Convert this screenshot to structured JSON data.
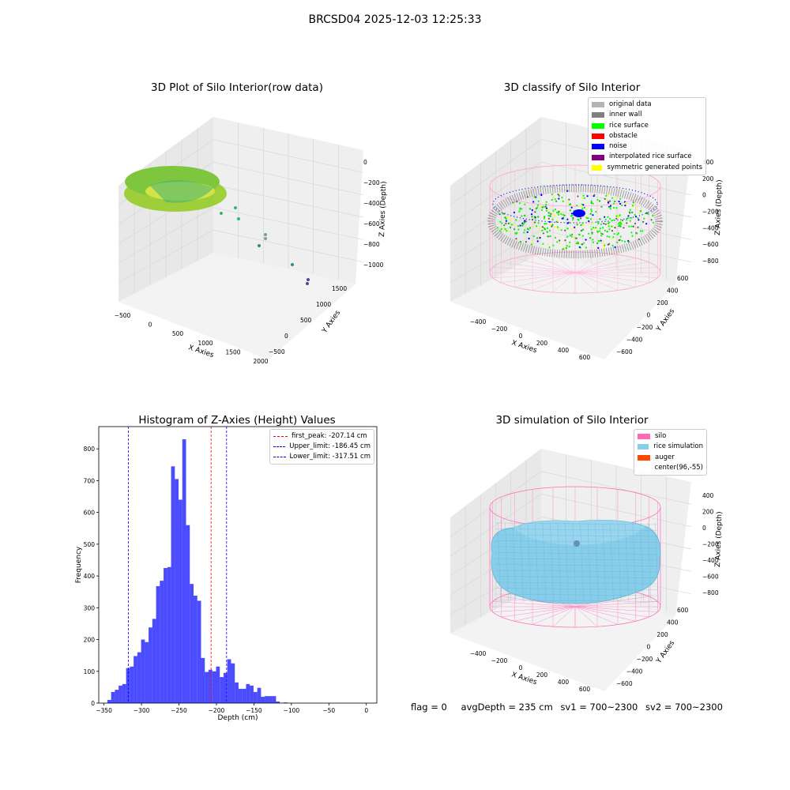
{
  "figure": {
    "suptitle": "BRCSD04 2025-12-03 12:25:33",
    "status": {
      "flag": "flag = 0",
      "avg_depth": "avgDepth = 235 cm",
      "sv1": "sv1 = 700~2300",
      "sv2": "sv2 = 700~2300"
    }
  },
  "panels": {
    "raw": {
      "title": "3D Plot of Silo Interior(row data)",
      "xlabel": "X Axies",
      "ylabel": "Y Axies",
      "zlabel": "Z Axies (Depth)",
      "xticks": [
        "−500",
        "0",
        "500",
        "1000",
        "1500",
        "2000"
      ],
      "yticks": [
        "−500",
        "0",
        "500",
        "1000",
        "1500"
      ],
      "zticks": [
        "0",
        "−200",
        "−400",
        "−600",
        "−800",
        "−1000"
      ]
    },
    "classify": {
      "title": "3D classify of Silo Interior",
      "xlabel": "X Axies",
      "ylabel": "Y Axies",
      "zlabel": "Z Axies (Depth)",
      "xticks": [
        "−400",
        "−200",
        "0",
        "200",
        "400",
        "600"
      ],
      "yticks": [
        "−600",
        "−400",
        "−200",
        "0",
        "200",
        "400",
        "600"
      ],
      "zticks": [
        "400",
        "200",
        "0",
        "−200",
        "−400",
        "−600",
        "−800"
      ],
      "legend": [
        {
          "label": "original data",
          "color": "#b4b4b4"
        },
        {
          "label": "inner wall",
          "color": "#808080"
        },
        {
          "label": "rice surface",
          "color": "#00ff00"
        },
        {
          "label": "obstacle",
          "color": "#ff0000"
        },
        {
          "label": "noise",
          "color": "#0000ff"
        },
        {
          "label": "interpolated rice surface",
          "color": "#800080"
        },
        {
          "label": "symmetric generated points",
          "color": "#ffff00"
        }
      ]
    },
    "simulation": {
      "title": "3D simulation of Silo Interior",
      "xlabel": "X Axies",
      "ylabel": "Y Axies",
      "zlabel": "Z Axies (Depth)",
      "xticks": [
        "−400",
        "−200",
        "0",
        "200",
        "400",
        "600"
      ],
      "yticks": [
        "−600",
        "−400",
        "−200",
        "0",
        "200",
        "400",
        "600"
      ],
      "zticks": [
        "400",
        "200",
        "0",
        "−200",
        "−400",
        "−600",
        "−800"
      ],
      "legend": [
        {
          "label": "silo",
          "color": "#ff69b4"
        },
        {
          "label": "rice simulation",
          "color": "#87ceeb"
        },
        {
          "label": "auger",
          "color": "#ff4500"
        },
        {
          "label": "center(96,-55)",
          "color": ""
        }
      ]
    }
  },
  "chart_data": {
    "type": "bar",
    "title": "Histogram of Z-Axies (Height) Values",
    "xlabel": "Depth (cm)",
    "ylabel": "Frequency",
    "xlim": [
      -357,
      14
    ],
    "ylim": [
      0,
      870
    ],
    "xticks": [
      -350,
      -300,
      -250,
      -200,
      -150,
      -100,
      -50,
      0
    ],
    "yticks": [
      0,
      100,
      200,
      300,
      400,
      500,
      600,
      700,
      800
    ],
    "color": "#0000ff",
    "bin_edges": [
      -345.5,
      -340.5,
      -335.5,
      -330.5,
      -325.5,
      -320.5,
      -315.5,
      -310.5,
      -305.5,
      -300.5,
      -295.5,
      -290.5,
      -285.5,
      -280.5,
      -275.5,
      -270.5,
      -265.5,
      -260.5,
      -255.5,
      -250.5,
      -245.5,
      -240.5,
      -235.5,
      -230.5,
      -225.5,
      -220.5,
      -215.5,
      -210.5,
      -205.5,
      -200.5,
      -195.5,
      -190.5,
      -185.5,
      -180.5,
      -175.5,
      -170.5,
      -165.5,
      -160.5,
      -155.5,
      -150.5,
      -145.5,
      -140.5,
      -135.5,
      -130.5,
      -125.5,
      -120.5,
      -115.5,
      -110.5,
      -105.5,
      -100.5,
      -95.5,
      -90.5,
      -85.5,
      -80.5,
      -75.5,
      -70.5,
      -65.5,
      -60.5,
      -55.5,
      -50.5,
      -45.5,
      -40.5,
      -35.5,
      -30.5,
      -25.5,
      -20.5,
      -15.5,
      -10.5,
      -5.5,
      -0.5,
      4.5
    ],
    "counts": [
      10,
      35,
      42,
      55,
      60,
      110,
      115,
      148,
      160,
      200,
      192,
      238,
      265,
      368,
      385,
      425,
      428,
      745,
      705,
      640,
      830,
      560,
      375,
      338,
      322,
      142,
      98,
      105,
      100,
      115,
      82,
      95,
      138,
      125,
      65,
      45,
      45,
      60,
      55,
      35,
      48,
      20,
      22,
      22,
      22,
      5,
      0,
      2,
      0,
      0,
      0,
      0,
      0,
      0,
      0,
      0,
      0,
      0,
      0,
      0,
      0,
      0,
      0,
      0,
      0,
      0,
      0,
      0,
      0,
      0
    ],
    "vlines": [
      {
        "label": "first_peak: -207.14 cm",
        "x": -207.14,
        "color": "#ff0000"
      },
      {
        "label": "Upper_limit: -186.45 cm",
        "x": -186.45,
        "color": "#0000ff"
      },
      {
        "label": "Lower_limit: -317.51 cm",
        "x": -317.51,
        "color": "#0000ff"
      }
    ],
    "legend_position": "upper right"
  }
}
